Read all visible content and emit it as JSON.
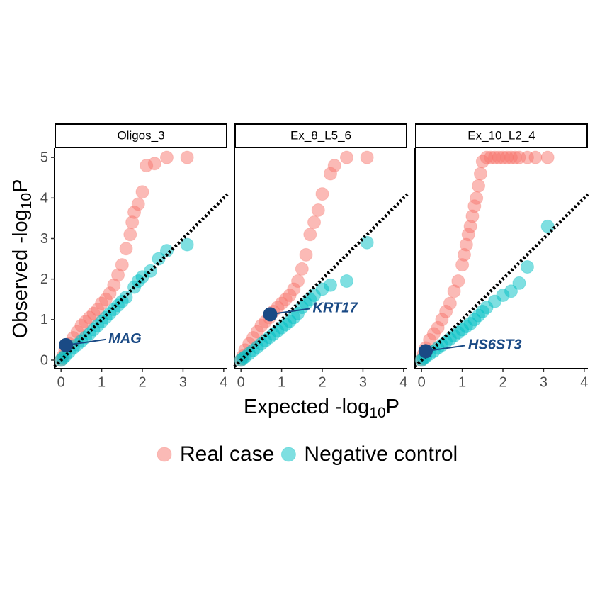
{
  "chart_data": [
    {
      "type": "scatter",
      "title": "Oligos_3",
      "xlim": [
        -0.16,
        4.09
      ],
      "ylim": [
        -0.21,
        5.23
      ],
      "xticks": [
        0,
        1,
        2,
        3,
        4
      ],
      "yticks": [
        0,
        1,
        2,
        3,
        4,
        5
      ],
      "series": [
        {
          "name": "Real case",
          "color": "#F8766D",
          "x": [
            0,
            0.05,
            0.1,
            0.2,
            0.3,
            0.4,
            0.5,
            0.6,
            0.7,
            0.8,
            0.9,
            1.0,
            1.1,
            1.2,
            1.3,
            1.4,
            1.5,
            1.6,
            1.7,
            1.75,
            1.8,
            1.9,
            2.0,
            2.1,
            2.3,
            2.6,
            3.1
          ],
          "y": [
            0,
            0.1,
            0.25,
            0.4,
            0.55,
            0.7,
            0.85,
            0.95,
            1.05,
            1.15,
            1.25,
            1.4,
            1.5,
            1.65,
            1.85,
            2.1,
            2.35,
            2.75,
            3.1,
            3.4,
            3.65,
            3.85,
            4.15,
            4.8,
            4.85,
            5,
            5
          ]
        },
        {
          "name": "Negative control",
          "color": "#00BFC4",
          "x": [
            0,
            0.05,
            0.1,
            0.2,
            0.3,
            0.4,
            0.5,
            0.6,
            0.7,
            0.8,
            0.9,
            1.0,
            1.1,
            1.2,
            1.3,
            1.4,
            1.5,
            1.6,
            1.8,
            1.9,
            2.0,
            2.2,
            2.4,
            2.6,
            3.1
          ],
          "y": [
            0,
            0.05,
            0.1,
            0.2,
            0.3,
            0.38,
            0.47,
            0.56,
            0.65,
            0.75,
            0.85,
            0.95,
            1.05,
            1.15,
            1.25,
            1.35,
            1.45,
            1.55,
            1.8,
            1.95,
            2.05,
            2.2,
            2.5,
            2.7,
            2.85
          ]
        }
      ],
      "highlight": {
        "label": "MAG",
        "x": 0.12,
        "y": 0.37,
        "color": "#1A4A85"
      }
    },
    {
      "type": "scatter",
      "title": "Ex_8_L5_6",
      "xlim": [
        -0.16,
        4.09
      ],
      "ylim": [
        -0.21,
        5.23
      ],
      "xticks": [
        0,
        1,
        2,
        3,
        4
      ],
      "series": [
        {
          "name": "Real case",
          "color": "#F8766D",
          "x": [
            0,
            0.05,
            0.1,
            0.2,
            0.3,
            0.4,
            0.5,
            0.6,
            0.7,
            0.8,
            0.9,
            1.0,
            1.1,
            1.2,
            1.3,
            1.4,
            1.5,
            1.6,
            1.7,
            1.8,
            1.9,
            2.0,
            2.2,
            2.3,
            2.6,
            3.1
          ],
          "y": [
            0,
            0.1,
            0.25,
            0.4,
            0.55,
            0.7,
            0.85,
            0.95,
            1.05,
            1.2,
            1.3,
            1.4,
            1.5,
            1.6,
            1.75,
            1.95,
            2.25,
            2.6,
            3.1,
            3.4,
            3.7,
            4.1,
            4.6,
            4.8,
            5,
            5
          ]
        },
        {
          "name": "Negative control",
          "color": "#00BFC4",
          "x": [
            0,
            0.05,
            0.1,
            0.2,
            0.3,
            0.4,
            0.5,
            0.6,
            0.7,
            0.8,
            0.9,
            1.0,
            1.1,
            1.2,
            1.3,
            1.4,
            1.5,
            1.6,
            1.7,
            1.8,
            2.0,
            2.2,
            2.6,
            3.1
          ],
          "y": [
            0,
            0.04,
            0.08,
            0.16,
            0.24,
            0.32,
            0.4,
            0.48,
            0.56,
            0.64,
            0.72,
            0.8,
            0.88,
            0.96,
            1.05,
            1.15,
            1.3,
            1.4,
            1.5,
            1.6,
            1.75,
            1.85,
            1.95,
            2.9
          ]
        }
      ],
      "highlight": {
        "label": "KRT17",
        "x": 0.72,
        "y": 1.13,
        "color": "#1A4A85"
      }
    },
    {
      "type": "scatter",
      "title": "Ex_10_L2_4",
      "xlim": [
        -0.16,
        4.09
      ],
      "ylim": [
        -0.21,
        5.23
      ],
      "xticks": [
        0,
        1,
        2,
        3,
        4
      ],
      "series": [
        {
          "name": "Real case",
          "color": "#F8766D",
          "x": [
            0,
            0.05,
            0.1,
            0.2,
            0.3,
            0.4,
            0.5,
            0.6,
            0.7,
            0.8,
            0.9,
            1.0,
            1.05,
            1.1,
            1.15,
            1.2,
            1.25,
            1.3,
            1.35,
            1.4,
            1.45,
            1.5,
            1.6,
            1.7,
            1.8,
            1.9,
            2.0,
            2.1,
            2.2,
            2.3,
            2.4,
            2.6,
            2.8,
            3.1
          ],
          "y": [
            0,
            0.15,
            0.3,
            0.5,
            0.65,
            0.8,
            1.0,
            1.2,
            1.4,
            1.7,
            1.95,
            2.35,
            2.6,
            2.85,
            3.1,
            3.3,
            3.55,
            3.8,
            4.0,
            4.3,
            4.6,
            4.9,
            5,
            5,
            5,
            5,
            5,
            5,
            5,
            5,
            5,
            5,
            5,
            5
          ]
        },
        {
          "name": "Negative control",
          "color": "#00BFC4",
          "x": [
            0,
            0.05,
            0.1,
            0.2,
            0.3,
            0.4,
            0.5,
            0.6,
            0.7,
            0.8,
            0.9,
            1.0,
            1.1,
            1.2,
            1.3,
            1.4,
            1.5,
            1.6,
            1.8,
            2.0,
            2.2,
            2.4,
            2.6,
            3.1
          ],
          "y": [
            0,
            0.04,
            0.08,
            0.15,
            0.22,
            0.3,
            0.37,
            0.45,
            0.52,
            0.6,
            0.68,
            0.75,
            0.83,
            0.9,
            1.0,
            1.1,
            1.2,
            1.3,
            1.45,
            1.6,
            1.7,
            1.9,
            2.3,
            3.3
          ]
        }
      ],
      "highlight": {
        "label": "HS6ST3",
        "x": 0.1,
        "y": 0.22,
        "color": "#1A4A85"
      }
    }
  ],
  "x_label": {
    "main": "Expected -log",
    "sub": "10",
    "end": "P"
  },
  "y_label": {
    "main": "Observed -log",
    "sub": "10",
    "end": "P"
  }
}
